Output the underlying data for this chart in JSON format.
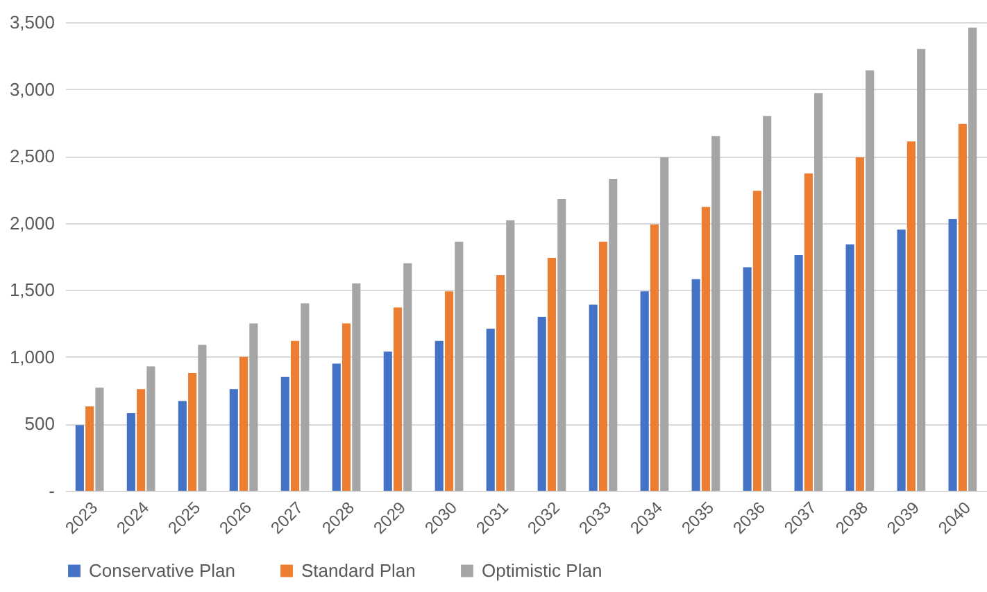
{
  "chart_data": {
    "type": "bar",
    "categories": [
      "2023",
      "2024",
      "2025",
      "2026",
      "2027",
      "2028",
      "2029",
      "2030",
      "2031",
      "2032",
      "2033",
      "2034",
      "2035",
      "2036",
      "2037",
      "2038",
      "2039",
      "2040"
    ],
    "series": [
      {
        "name": "Conservative Plan",
        "color": "#4472c4",
        "values": [
          490,
          580,
          670,
          760,
          850,
          950,
          1040,
          1120,
          1210,
          1300,
          1390,
          1490,
          1580,
          1670,
          1760,
          1840,
          1950,
          2030
        ]
      },
      {
        "name": "Standard Plan",
        "color": "#ed7d31",
        "values": [
          630,
          760,
          880,
          1000,
          1120,
          1250,
          1370,
          1490,
          1610,
          1740,
          1860,
          1990,
          2120,
          2240,
          2370,
          2490,
          2610,
          2740
        ]
      },
      {
        "name": "Optimistic Plan",
        "color": "#a5a5a5",
        "values": [
          770,
          930,
          1090,
          1250,
          1400,
          1550,
          1700,
          1860,
          2020,
          2180,
          2330,
          2490,
          2650,
          2800,
          2970,
          3140,
          3300,
          3460
        ]
      }
    ],
    "ylim": [
      0,
      3500
    ],
    "yticks": [
      {
        "value": 0,
        "label": "-"
      },
      "500",
      {
        "value": 1000,
        "label": "1,000"
      },
      {
        "value": 1500,
        "label": "1,500"
      },
      {
        "value": 2000,
        "label": "2,000"
      },
      {
        "value": 2500,
        "label": "2,500"
      },
      {
        "value": 3000,
        "label": "3,000"
      },
      {
        "value": 3500,
        "label": "3,500"
      }
    ],
    "grid": "y",
    "legend": "bottom"
  }
}
